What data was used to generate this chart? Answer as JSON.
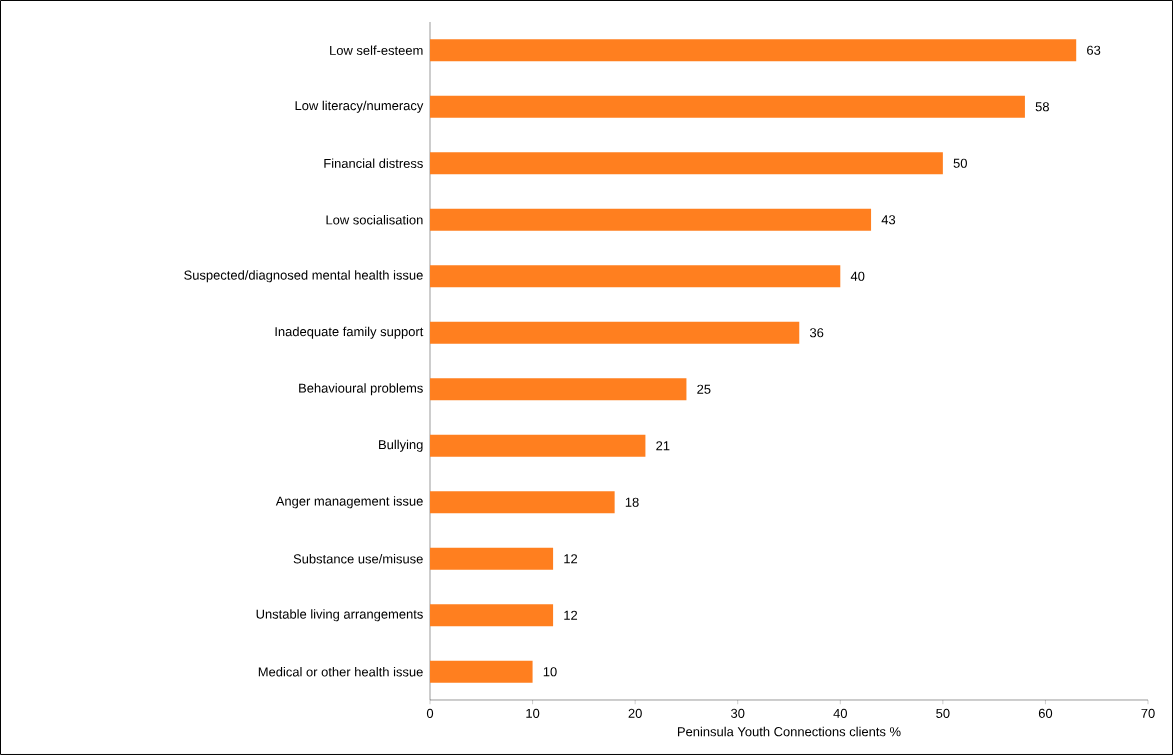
{
  "chart_data": {
    "type": "bar",
    "orientation": "horizontal",
    "xlabel": "Peninsula Youth Connections clients %",
    "categories": [
      "Low self-esteem",
      "Low literacy/numeracy",
      "Financial distress",
      "Low socialisation",
      "Suspected/diagnosed mental health issue",
      "Inadequate family support",
      "Behavioural problems",
      "Bullying",
      "Anger management issue",
      "Substance use/misuse",
      "Unstable living arrangements",
      "Medical or other health issue"
    ],
    "values": [
      63,
      58,
      50,
      43,
      40,
      36,
      25,
      21,
      18,
      12,
      12,
      10
    ],
    "color": "#ff7f1f",
    "data_labels": true,
    "grid": false,
    "xlim": [
      0,
      70
    ],
    "xticks": [
      0,
      10,
      20,
      30,
      40,
      50,
      60,
      70
    ]
  }
}
